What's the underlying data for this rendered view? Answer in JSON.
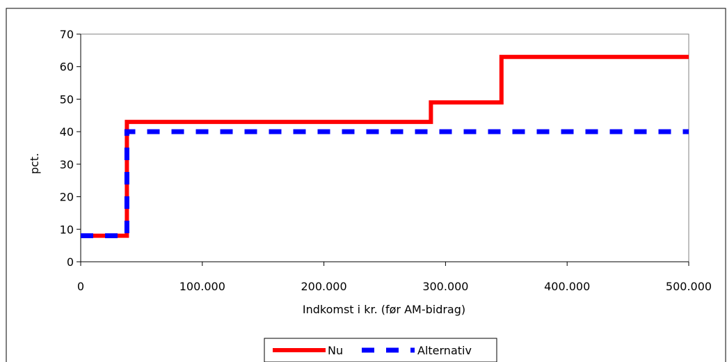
{
  "chart_data": {
    "type": "line",
    "title": "",
    "xlabel": "Indkomst i kr. (før AM-bidrag)",
    "ylabel": "pct.",
    "xlim": [
      0,
      500000
    ],
    "ylim": [
      0,
      70
    ],
    "x_ticks": [
      0,
      100000,
      200000,
      300000,
      400000,
      500000
    ],
    "x_tick_labels": [
      "0",
      "100.000",
      "200.000",
      "300.000",
      "400.000",
      "500.000"
    ],
    "y_ticks": [
      0,
      10,
      20,
      30,
      40,
      50,
      60,
      70
    ],
    "y_tick_labels": [
      "0",
      "10",
      "20",
      "30",
      "40",
      "50",
      "60",
      "70"
    ],
    "grid": false,
    "legend_position": "bottom",
    "series": [
      {
        "name": "Nu",
        "color": "#ff0000",
        "style": "solid",
        "step": true,
        "points": [
          [
            0,
            8
          ],
          [
            38000,
            8
          ],
          [
            38000,
            43
          ],
          [
            288000,
            43
          ],
          [
            288000,
            49
          ],
          [
            346000,
            49
          ],
          [
            346000,
            63
          ],
          [
            500000,
            63
          ]
        ]
      },
      {
        "name": "Alternativ",
        "color": "#0000ff",
        "style": "dashed",
        "step": true,
        "points": [
          [
            0,
            8
          ],
          [
            38000,
            8
          ],
          [
            38000,
            40
          ],
          [
            500000,
            40
          ]
        ]
      }
    ]
  }
}
